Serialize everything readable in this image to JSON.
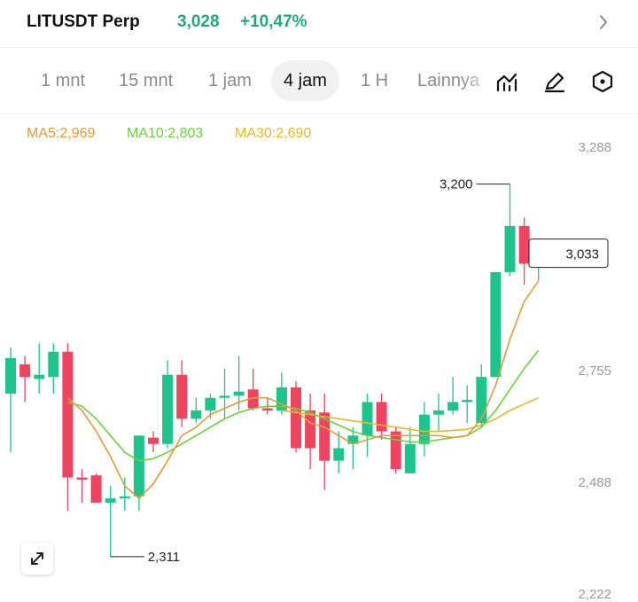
{
  "header": {
    "pair": "LITUSDT Perp",
    "price": "3,028",
    "change": "+10,47%"
  },
  "tabs": [
    {
      "label": "1 mnt",
      "active": false
    },
    {
      "label": "15 mnt",
      "active": false
    },
    {
      "label": "1 jam",
      "active": false
    },
    {
      "label": "4 jam",
      "active": true
    },
    {
      "label": "1 H",
      "active": false
    },
    {
      "label": "Lainnya",
      "active": false
    }
  ],
  "tools": [
    "chart-indicator-icon",
    "pencil-icon",
    "settings-hexagon-icon"
  ],
  "ma": {
    "ma5": "MA5:2,969",
    "ma10": "MA10:2,803",
    "ma30": "MA30:2,690"
  },
  "colors": {
    "up": "#1fc38c",
    "down": "#f0435f",
    "ma5": "#e39a3b",
    "ma10": "#6ecf3e",
    "ma30": "#e6b92a"
  },
  "chart_data": {
    "type": "candlestick",
    "y_ticks": [
      "3,288",
      "2,755",
      "2,488",
      "2,222"
    ],
    "ylim": [
      2222,
      3288
    ],
    "high_label": "3,200",
    "low_label": "2,311",
    "last_price": "3,033",
    "candles": [
      {
        "o": 2700,
        "c": 2785,
        "h": 2810,
        "l": 2560
      },
      {
        "o": 2770,
        "c": 2740,
        "h": 2790,
        "l": 2680
      },
      {
        "o": 2735,
        "c": 2745,
        "h": 2820,
        "l": 2700
      },
      {
        "o": 2740,
        "c": 2800,
        "h": 2820,
        "l": 2700
      },
      {
        "o": 2800,
        "c": 2500,
        "h": 2820,
        "l": 2420
      },
      {
        "o": 2500,
        "c": 2495,
        "h": 2520,
        "l": 2440
      },
      {
        "o": 2505,
        "c": 2440,
        "h": 2510,
        "l": 2440
      },
      {
        "o": 2440,
        "c": 2450,
        "h": 2480,
        "l": 2311
      },
      {
        "o": 2450,
        "c": 2455,
        "h": 2500,
        "l": 2420
      },
      {
        "o": 2455,
        "c": 2600,
        "h": 2600,
        "l": 2420
      },
      {
        "o": 2595,
        "c": 2580,
        "h": 2610,
        "l": 2560
      },
      {
        "o": 2580,
        "c": 2745,
        "h": 2780,
        "l": 2570
      },
      {
        "o": 2745,
        "c": 2640,
        "h": 2780,
        "l": 2620
      },
      {
        "o": 2640,
        "c": 2660,
        "h": 2690,
        "l": 2630
      },
      {
        "o": 2660,
        "c": 2690,
        "h": 2700,
        "l": 2640
      },
      {
        "o": 2690,
        "c": 2695,
        "h": 2760,
        "l": 2640
      },
      {
        "o": 2695,
        "c": 2705,
        "h": 2790,
        "l": 2660
      },
      {
        "o": 2710,
        "c": 2665,
        "h": 2760,
        "l": 2660
      },
      {
        "o": 2665,
        "c": 2660,
        "h": 2690,
        "l": 2650
      },
      {
        "o": 2660,
        "c": 2715,
        "h": 2750,
        "l": 2650
      },
      {
        "o": 2715,
        "c": 2570,
        "h": 2730,
        "l": 2560
      },
      {
        "o": 2660,
        "c": 2570,
        "h": 2700,
        "l": 2520
      },
      {
        "o": 2655,
        "c": 2540,
        "h": 2700,
        "l": 2470
      },
      {
        "o": 2540,
        "c": 2570,
        "h": 2610,
        "l": 2510
      },
      {
        "o": 2580,
        "c": 2600,
        "h": 2620,
        "l": 2520
      },
      {
        "o": 2600,
        "c": 2680,
        "h": 2700,
        "l": 2550
      },
      {
        "o": 2680,
        "c": 2610,
        "h": 2700,
        "l": 2590
      },
      {
        "o": 2610,
        "c": 2520,
        "h": 2620,
        "l": 2510
      },
      {
        "o": 2510,
        "c": 2580,
        "h": 2620,
        "l": 2510
      },
      {
        "o": 2580,
        "c": 2650,
        "h": 2680,
        "l": 2550
      },
      {
        "o": 2650,
        "c": 2660,
        "h": 2700,
        "l": 2610
      },
      {
        "o": 2660,
        "c": 2680,
        "h": 2740,
        "l": 2650
      },
      {
        "o": 2680,
        "c": 2685,
        "h": 2720,
        "l": 2630
      },
      {
        "o": 2630,
        "c": 2740,
        "h": 2770,
        "l": 2620
      },
      {
        "o": 2740,
        "c": 2990,
        "h": 2990,
        "l": 2740
      },
      {
        "o": 2990,
        "c": 3100,
        "h": 3200,
        "l": 2980
      },
      {
        "o": 3100,
        "c": 3010,
        "h": 3120,
        "l": 2960
      },
      {
        "o": 3010,
        "c": 3033,
        "h": 3040,
        "l": 2970
      }
    ],
    "ma5": [
      null,
      null,
      null,
      null,
      2690,
      2660,
      2610,
      2550,
      2480,
      2450,
      2485,
      2540,
      2600,
      2620,
      2650,
      2665,
      2680,
      2690,
      2690,
      2675,
      2660,
      2630,
      2620,
      2600,
      2580,
      2590,
      2600,
      2600,
      2600,
      2600,
      2600,
      2595,
      2600,
      2640,
      2720,
      2830,
      2920,
      2969
    ],
    "ma10": [
      null,
      null,
      null,
      null,
      2680,
      2670,
      2640,
      2600,
      2560,
      2540,
      2545,
      2560,
      2580,
      2600,
      2620,
      2640,
      2655,
      2665,
      2670,
      2670,
      2665,
      2655,
      2640,
      2625,
      2610,
      2600,
      2595,
      2590,
      2585,
      2585,
      2590,
      2595,
      2600,
      2620,
      2660,
      2710,
      2760,
      2803
    ],
    "ma30": [
      null,
      null,
      null,
      null,
      null,
      null,
      null,
      null,
      null,
      null,
      null,
      null,
      null,
      null,
      null,
      null,
      null,
      null,
      null,
      2660,
      2655,
      2650,
      2645,
      2640,
      2635,
      2630,
      2625,
      2620,
      2615,
      2610,
      2610,
      2612,
      2615,
      2625,
      2640,
      2660,
      2675,
      2690
    ]
  }
}
